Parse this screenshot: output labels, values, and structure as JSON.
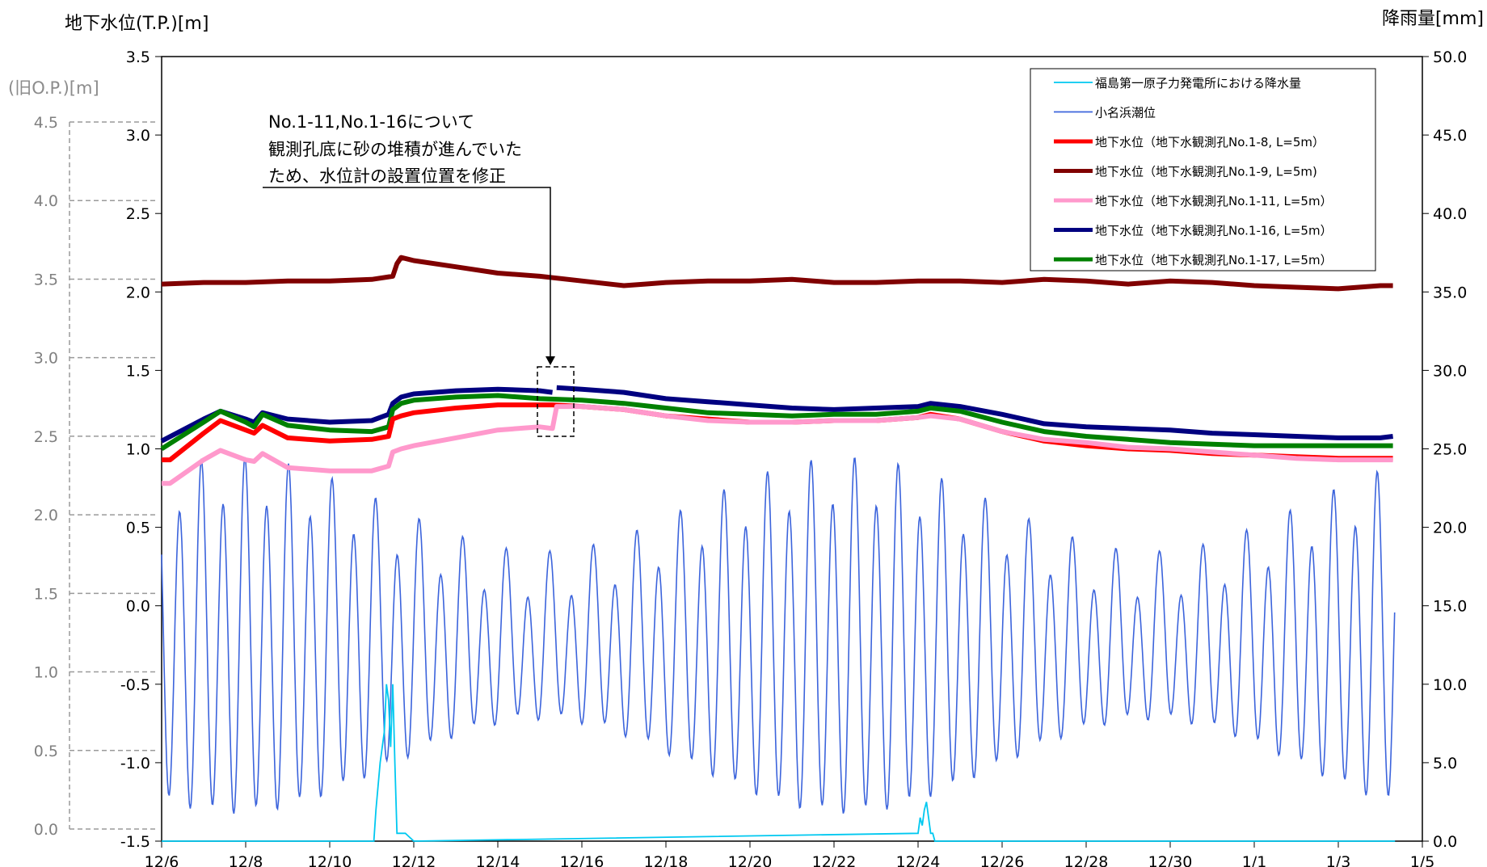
{
  "chart_data": {
    "type": "line",
    "title": "",
    "y_left_label": "地下水位(T.P.)[m]",
    "y_left_old_label": "(旧O.P.)[m]",
    "y_right_label": "降雨量[mm]",
    "x_ticks": [
      "12/6",
      "12/8",
      "12/10",
      "12/12",
      "12/14",
      "12/16",
      "12/18",
      "12/20",
      "12/22",
      "12/24",
      "12/26",
      "12/28",
      "12/30",
      "1/1",
      "1/3",
      "1/5"
    ],
    "x_range_days": [
      0,
      30
    ],
    "y_left_ticks": [
      "3.5",
      "3.0",
      "2.5",
      "2.0",
      "1.5",
      "1.0",
      "0.5",
      "0.0",
      "-0.5",
      "-1.0",
      "-1.5"
    ],
    "y_left_range": [
      -1.5,
      3.5
    ],
    "y_old_ticks": [
      "4.5",
      "4.0",
      "3.5",
      "3.0",
      "2.5",
      "2.0",
      "1.5",
      "1.0",
      "0.5",
      "0.0"
    ],
    "y_old_range": [
      0.0,
      4.5
    ],
    "y_right_ticks": [
      "50.0",
      "45.0",
      "40.0",
      "35.0",
      "30.0",
      "25.0",
      "20.0",
      "15.0",
      "10.0",
      "5.0",
      "0.0"
    ],
    "y_right_range": [
      0,
      50
    ],
    "annotation": {
      "lines": [
        "No.1-11,No.1-16について",
        "観測孔底に砂の堆積が進んでいた",
        "ため、水位計の設置位置を修正"
      ]
    },
    "legend": {
      "position": "top-right",
      "entries": [
        {
          "label": "福島第一原子力発電所における降水量",
          "color": "#00c8f0"
        },
        {
          "label": "小名浜潮位",
          "color": "#3c64dc"
        },
        {
          "label": "地下水位（地下水観測孔No.1-8, L=5m）",
          "color": "#ff0000"
        },
        {
          "label": "地下水位（地下水観測孔No.1-9, L=5m)",
          "color": "#800000"
        },
        {
          "label": "地下水位（地下水観測孔No.1-11, L=5m）",
          "color": "#ff99cc"
        },
        {
          "label": "地下水位（地下水観測孔No.1-16, L=5m）",
          "color": "#000080"
        },
        {
          "label": "地下水位（地下水観測孔No.1-17, L=5m）",
          "color": "#008000"
        }
      ]
    },
    "series": [
      {
        "name": "地下水位（地下水観測孔No.1-9, L=5m)",
        "color": "#800000",
        "axis": "left",
        "x": [
          0,
          1,
          2,
          3,
          4,
          5,
          5.5,
          5.6,
          5.7,
          6,
          7,
          8,
          9,
          10,
          11,
          11.5,
          12,
          13,
          14,
          15,
          16,
          17,
          18,
          19,
          20,
          21,
          22,
          23,
          24,
          25,
          26,
          27,
          28,
          29,
          29.3
        ],
        "y": [
          2.05,
          2.06,
          2.06,
          2.07,
          2.07,
          2.08,
          2.1,
          2.18,
          2.22,
          2.2,
          2.16,
          2.12,
          2.1,
          2.07,
          2.04,
          2.05,
          2.06,
          2.07,
          2.07,
          2.08,
          2.06,
          2.06,
          2.07,
          2.07,
          2.06,
          2.08,
          2.07,
          2.05,
          2.07,
          2.06,
          2.04,
          2.03,
          2.02,
          2.04,
          2.04
        ]
      },
      {
        "name": "地下水位（地下水観測孔No.1-16, L=5m）",
        "color": "#000080",
        "axis": "left",
        "x": [
          0,
          1,
          1.4,
          2,
          2.2,
          2.4,
          3,
          4,
          5,
          5.4,
          5.5,
          5.7,
          6,
          7,
          8,
          9,
          9.3,
          null,
          9.4,
          10,
          11,
          12,
          13,
          14,
          15,
          16,
          17,
          18,
          18.3,
          19,
          20,
          21,
          22,
          23,
          24,
          25,
          26,
          27,
          28,
          29,
          29.3
        ],
        "y": [
          1.05,
          1.19,
          1.24,
          1.19,
          1.17,
          1.23,
          1.19,
          1.17,
          1.18,
          1.22,
          1.29,
          1.33,
          1.35,
          1.37,
          1.38,
          1.37,
          1.36,
          null,
          1.39,
          1.38,
          1.36,
          1.32,
          1.3,
          1.28,
          1.26,
          1.25,
          1.26,
          1.27,
          1.29,
          1.27,
          1.22,
          1.16,
          1.14,
          1.13,
          1.12,
          1.1,
          1.09,
          1.08,
          1.07,
          1.07,
          1.08
        ]
      },
      {
        "name": "地下水位（地下水観測孔No.1-17, L=5m）",
        "color": "#008000",
        "axis": "left",
        "x": [
          0,
          1,
          1.4,
          2,
          2.2,
          2.4,
          3,
          4,
          5,
          5.4,
          5.5,
          5.7,
          6,
          7,
          8,
          9,
          10,
          11,
          12,
          13,
          14,
          15,
          16,
          17,
          18,
          18.3,
          19,
          20,
          21,
          22,
          23,
          24,
          25,
          26,
          27,
          28,
          29,
          29.3
        ],
        "y": [
          1.0,
          1.17,
          1.24,
          1.17,
          1.14,
          1.22,
          1.15,
          1.12,
          1.11,
          1.14,
          1.25,
          1.29,
          1.31,
          1.33,
          1.34,
          1.32,
          1.31,
          1.29,
          1.26,
          1.23,
          1.22,
          1.21,
          1.22,
          1.22,
          1.24,
          1.26,
          1.24,
          1.17,
          1.11,
          1.08,
          1.06,
          1.04,
          1.03,
          1.02,
          1.02,
          1.02,
          1.02,
          1.02
        ]
      },
      {
        "name": "地下水位（地下水観測孔No.1-8, L=5m）",
        "color": "#ff0000",
        "axis": "left",
        "x": [
          0,
          0.2,
          1,
          1.4,
          2,
          2.2,
          2.4,
          3,
          4,
          5,
          5.4,
          5.5,
          5.7,
          6,
          7,
          8,
          9,
          9.3,
          10,
          11,
          12,
          13,
          14,
          15,
          16,
          17,
          18,
          18.3,
          19,
          20,
          21,
          22,
          23,
          24,
          25,
          26,
          27,
          28,
          29,
          29.3
        ],
        "y": [
          0.93,
          0.93,
          1.1,
          1.18,
          1.12,
          1.1,
          1.15,
          1.07,
          1.05,
          1.06,
          1.08,
          1.19,
          1.21,
          1.23,
          1.26,
          1.28,
          1.28,
          1.28,
          1.27,
          1.25,
          1.21,
          1.19,
          1.17,
          1.17,
          1.18,
          1.18,
          1.2,
          1.22,
          1.19,
          1.11,
          1.05,
          1.02,
          1.0,
          0.99,
          0.97,
          0.96,
          0.95,
          0.94,
          0.94,
          0.94
        ]
      },
      {
        "name": "地下水位（地下水観測孔No.1-11, L=5m）",
        "color": "#ff99cc",
        "axis": "left",
        "x": [
          0,
          0.2,
          1,
          1.4,
          2,
          2.2,
          2.4,
          3,
          4,
          5,
          5.4,
          5.5,
          5.7,
          6,
          7,
          8,
          9,
          9.3,
          9.35,
          9.4,
          10,
          11,
          12,
          13,
          14,
          15,
          16,
          17,
          18,
          18.3,
          19,
          20,
          21,
          22,
          23,
          24,
          25,
          26,
          27,
          28,
          29,
          29.3
        ],
        "y": [
          0.78,
          0.78,
          0.93,
          0.99,
          0.93,
          0.92,
          0.97,
          0.88,
          0.86,
          0.86,
          0.89,
          0.98,
          1.0,
          1.02,
          1.07,
          1.12,
          1.14,
          1.13,
          1.2,
          1.27,
          1.27,
          1.25,
          1.21,
          1.18,
          1.17,
          1.17,
          1.18,
          1.18,
          1.2,
          1.21,
          1.19,
          1.11,
          1.06,
          1.04,
          1.01,
          1.0,
          0.98,
          0.96,
          0.94,
          0.93,
          0.93,
          0.93
        ]
      }
    ],
    "tide": {
      "name": "小名浜潮位",
      "color": "#3c64dc",
      "axis": "left",
      "cycles_per_day": 1.93,
      "mean": -0.25,
      "peak_days": [
        6.1,
        6.5,
        9.1,
        9.5,
        18.3,
        19.0,
        21.0,
        22.0,
        25.7,
        26.0,
        27.5
      ],
      "note": "semi-diurnal tide ranging roughly -1.4 to +0.7 m"
    },
    "rainfall": {
      "name": "福島第一原子力発電所における降水量",
      "color": "#00c8f0",
      "axis": "right",
      "x": [
        5.1,
        5.2,
        5.3,
        5.35,
        5.4,
        5.45,
        5.5,
        5.55,
        5.6,
        5.7,
        5.8,
        6.0,
        18.0,
        18.05,
        18.1,
        18.15,
        18.2,
        18.25,
        18.3,
        18.35,
        18.4
      ],
      "y": [
        2.0,
        5.0,
        7.0,
        10.0,
        9.0,
        6.0,
        10.0,
        5.0,
        0.5,
        0.5,
        0.5,
        0,
        0.5,
        1.5,
        1.0,
        2.0,
        2.5,
        1.5,
        0.5,
        0.5,
        0
      ]
    }
  }
}
